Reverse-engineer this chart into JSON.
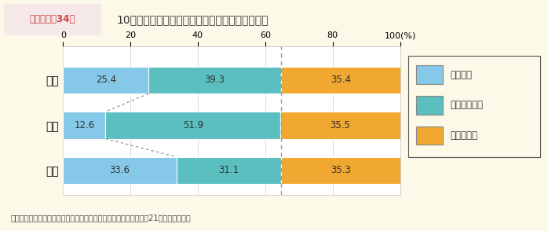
{
  "title_box": "第１－特－34図",
  "title_text": "10年後，今より高い職責にあると思うか（性別）",
  "categories": [
    "総数",
    "女性",
    "男性"
  ],
  "series": [
    {
      "name": "そう思う",
      "values": [
        25.4,
        12.6,
        33.6
      ],
      "color": "#85c8e8"
    },
    {
      "name": "そう思わない",
      "values": [
        39.3,
        51.9,
        31.1
      ],
      "color": "#5bbfbf"
    },
    {
      "name": "分からない",
      "values": [
        35.4,
        35.5,
        35.3
      ],
      "color": "#f0a830"
    }
  ],
  "xlim": [
    0,
    100
  ],
  "xticks": [
    0,
    20,
    40,
    60,
    80,
    100
  ],
  "background_color": "#fdf9e8",
  "title_bg_color": "#f5e8e8",
  "title_box_color": "#cc4444",
  "dashed_line_x": 64.7,
  "note": "（備考）内閣府「男女のライフスタイルに関する意識調査」（平成21年）より作成。"
}
